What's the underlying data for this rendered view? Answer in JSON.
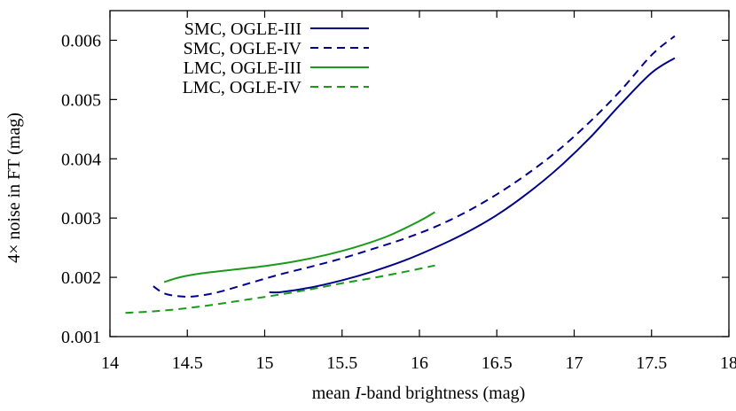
{
  "chart_data": {
    "type": "line",
    "xlabel_prefix": "mean ",
    "xlabel_italic": "I",
    "xlabel_suffix": "-band brightness (mag)",
    "ylabel": "4× noise in FT (mag)",
    "xlim": [
      14,
      18
    ],
    "ylim": [
      0.001,
      0.0065
    ],
    "xticks": [
      14,
      14.5,
      15,
      15.5,
      16,
      16.5,
      17,
      17.5,
      18
    ],
    "xtick_labels": [
      "14",
      "14.5",
      "15",
      "15.5",
      "16",
      "16.5",
      "17",
      "17.5",
      "18"
    ],
    "yticks": [
      0.001,
      0.002,
      0.003,
      0.004,
      0.005,
      0.006
    ],
    "ytick_labels": [
      "0.001",
      "0.002",
      "0.003",
      "0.004",
      "0.005",
      "0.006"
    ],
    "grid": false,
    "legend_position": "top-left",
    "series": [
      {
        "name": "SMC, OGLE-III",
        "color": "#00008b",
        "dash": "solid",
        "x": [
          15.03,
          15.1,
          15.3,
          15.5,
          15.7,
          15.9,
          16.1,
          16.3,
          16.5,
          16.7,
          16.9,
          17.1,
          17.3,
          17.5,
          17.65
        ],
        "y": [
          0.00175,
          0.00175,
          0.00183,
          0.00195,
          0.0021,
          0.00228,
          0.0025,
          0.00275,
          0.00305,
          0.00342,
          0.00385,
          0.00435,
          0.00492,
          0.00545,
          0.0057
        ]
      },
      {
        "name": "SMC, OGLE-IV",
        "color": "#00008b",
        "dash": "dashed",
        "x": [
          14.28,
          14.35,
          14.45,
          14.55,
          14.7,
          14.9,
          15.1,
          15.3,
          15.5,
          15.7,
          15.9,
          16.1,
          16.3,
          16.5,
          16.7,
          16.9,
          17.1,
          17.3,
          17.5,
          17.65
        ],
        "y": [
          0.00185,
          0.00173,
          0.00168,
          0.00168,
          0.00175,
          0.0019,
          0.00205,
          0.00218,
          0.00232,
          0.00248,
          0.00265,
          0.00285,
          0.0031,
          0.0034,
          0.00375,
          0.00415,
          0.00462,
          0.00515,
          0.00575,
          0.00607
        ]
      },
      {
        "name": "LMC, OGLE-III",
        "color": "#1a9a1a",
        "dash": "solid",
        "x": [
          14.35,
          14.45,
          14.6,
          14.8,
          15.0,
          15.2,
          15.4,
          15.6,
          15.8,
          16.0,
          16.1
        ],
        "y": [
          0.00192,
          0.002,
          0.00207,
          0.00213,
          0.00219,
          0.00227,
          0.00238,
          0.00252,
          0.0027,
          0.00295,
          0.0031
        ]
      },
      {
        "name": "LMC, OGLE-IV",
        "color": "#1a9a1a",
        "dash": "dashed",
        "x": [
          14.1,
          14.3,
          14.5,
          14.7,
          14.9,
          15.1,
          15.3,
          15.5,
          15.7,
          15.9,
          16.1
        ],
        "y": [
          0.0014,
          0.00143,
          0.00148,
          0.00155,
          0.00163,
          0.00171,
          0.0018,
          0.0019,
          0.00199,
          0.00209,
          0.0022
        ]
      }
    ]
  }
}
